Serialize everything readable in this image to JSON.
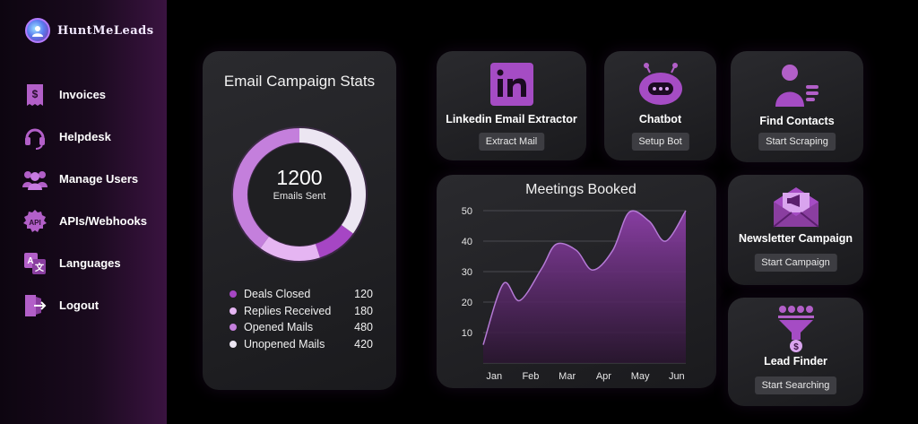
{
  "app": {
    "name": "HuntMeLeads"
  },
  "sidebar": {
    "items": [
      {
        "label": "Invoices",
        "icon": "invoice-icon"
      },
      {
        "label": "Helpdesk",
        "icon": "headset-icon"
      },
      {
        "label": "Manage Users",
        "icon": "users-icon"
      },
      {
        "label": "APIs/Webhooks",
        "icon": "api-icon"
      },
      {
        "label": "Languages",
        "icon": "translate-icon"
      },
      {
        "label": "Logout",
        "icon": "logout-icon"
      }
    ]
  },
  "stats": {
    "title": "Email Campaign Stats",
    "total_value": "1200",
    "total_label": "Emails Sent",
    "legend": [
      {
        "label": "Deals Closed",
        "value": "120",
        "color": "#a646c4"
      },
      {
        "label": "Replies Received",
        "value": "180",
        "color": "#e5b5f2"
      },
      {
        "label": "Opened Mails",
        "value": "480",
        "color": "#c47fdc"
      },
      {
        "label": "Unopened Mails",
        "value": "420",
        "color": "#ece6f2"
      }
    ]
  },
  "tools": {
    "linkedin": {
      "title": "Linkedin Email Extractor",
      "button": "Extract Mail",
      "icon": "linkedin-icon"
    },
    "chatbot": {
      "title": "Chatbot",
      "button": "Setup Bot",
      "icon": "robot-icon"
    },
    "contacts": {
      "title": "Find Contacts",
      "button": "Start Scraping",
      "icon": "contact-card-icon"
    },
    "newsletter": {
      "title": "Newsletter Campaign",
      "button": "Start Campaign",
      "icon": "envelope-icon"
    },
    "leadfinder": {
      "title": "Lead Finder",
      "button": "Start Searching",
      "icon": "funnel-icon"
    }
  },
  "chart_data": {
    "type": "area",
    "title": "Meetings Booked",
    "categories": [
      "Jan",
      "Feb",
      "Mar",
      "Apr",
      "May",
      "Jun"
    ],
    "x": [
      0,
      0.55,
      1,
      1.6,
      2,
      2.55,
      3,
      3.55,
      4,
      4.55,
      5,
      5.55
    ],
    "y": [
      6,
      26,
      20.5,
      31,
      39,
      37,
      30.5,
      37,
      49.5,
      46.5,
      40,
      50
    ],
    "yticks": [
      10,
      20,
      30,
      40,
      50
    ],
    "ylim": [
      0,
      50
    ],
    "grid": true,
    "colors": {
      "line": "#b57ad6",
      "fill_top": "#8d3fa8",
      "fill_bottom": "#2a1530"
    }
  },
  "colors": {
    "accent": "#a646c4",
    "card": "#222226",
    "button": "#3d3d42"
  }
}
